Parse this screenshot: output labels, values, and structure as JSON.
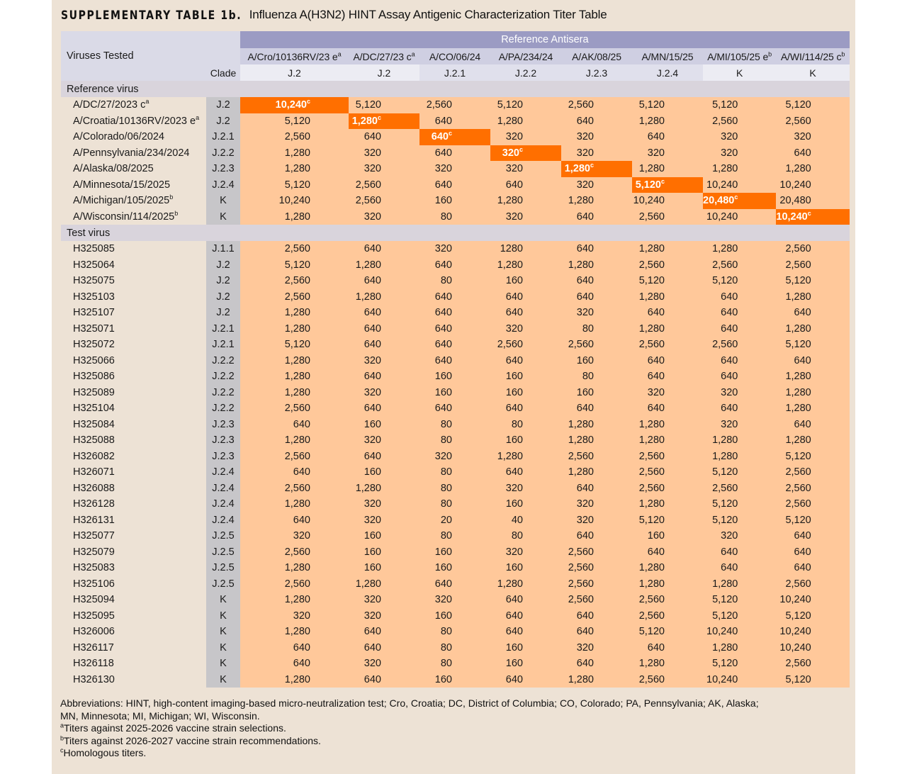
{
  "title": {
    "lead": "SUPPLEMENTARY TABLE 1b.",
    "text": "Influenza A(H3N2) HINT Assay Antigenic Characterization Titer Table"
  },
  "header": {
    "viruses_tested": "Viruses Tested",
    "clade": "Clade",
    "reference_antisera": "Reference Antisera",
    "antisera": [
      {
        "name": "A/Cro/10136RV/23 e",
        "sup": "a",
        "clade": "J.2"
      },
      {
        "name": "A/DC/27/23 c",
        "sup": "a",
        "clade": "J.2"
      },
      {
        "name": "A/CO/06/24",
        "sup": "",
        "clade": "J.2.1"
      },
      {
        "name": "A/PA/234/24",
        "sup": "",
        "clade": "J.2.2"
      },
      {
        "name": "A/AK/08/25",
        "sup": "",
        "clade": "J.2.3"
      },
      {
        "name": "A/MN/15/25",
        "sup": "",
        "clade": "J.2.4"
      },
      {
        "name": "A/MI/105/25 e",
        "sup": "b",
        "clade": "K"
      },
      {
        "name": "A/WI/114/25 c",
        "sup": "b",
        "clade": "K"
      }
    ]
  },
  "sections": [
    {
      "label": "Reference virus",
      "rows": [
        {
          "virus": "A/DC/27/2023 c",
          "sup": "a",
          "clade": "J.2",
          "titers": [
            "10,240",
            "5,120",
            "2,560",
            "5,120",
            "2,560",
            "5,120",
            "5,120",
            "5,120"
          ],
          "homologous": 0
        },
        {
          "virus": "A/Croatia/10136RV/2023 e",
          "sup": "a",
          "clade": "J.2",
          "titers": [
            "5,120",
            "1,280",
            "640",
            "1,280",
            "640",
            "1,280",
            "2,560",
            "2,560"
          ],
          "homologous": 1
        },
        {
          "virus": "A/Colorado/06/2024",
          "sup": "",
          "clade": "J.2.1",
          "titers": [
            "2,560",
            "640",
            "640",
            "320",
            "320",
            "640",
            "320",
            "320"
          ],
          "homologous": 2
        },
        {
          "virus": "A/Pennsylvania/234/2024",
          "sup": "",
          "clade": "J.2.2",
          "titers": [
            "1,280",
            "320",
            "640",
            "320",
            "320",
            "320",
            "320",
            "640"
          ],
          "homologous": 3
        },
        {
          "virus": "A/Alaska/08/2025",
          "sup": "",
          "clade": "J.2.3",
          "titers": [
            "1,280",
            "320",
            "320",
            "320",
            "1,280",
            "1,280",
            "1,280",
            "1,280"
          ],
          "homologous": 4
        },
        {
          "virus": "A/Minnesota/15/2025",
          "sup": "",
          "clade": "J.2.4",
          "titers": [
            "5,120",
            "2,560",
            "640",
            "640",
            "320",
            "5,120",
            "10,240",
            "10,240"
          ],
          "homologous": 5
        },
        {
          "virus": "A/Michigan/105/2025",
          "sup": "b",
          "clade": "K",
          "titers": [
            "10,240",
            "2,560",
            "160",
            "1,280",
            "1,280",
            "10,240",
            "20,480",
            "20,480"
          ],
          "homologous": 6
        },
        {
          "virus": "A/Wisconsin/114/2025",
          "sup": "b",
          "clade": "K",
          "titers": [
            "1,280",
            "320",
            "80",
            "320",
            "640",
            "2,560",
            "10,240",
            "10,240"
          ],
          "homologous": 7
        }
      ]
    },
    {
      "label": "Test virus",
      "rows": [
        {
          "virus": "H325085",
          "clade": "J.1.1",
          "titers": [
            "2,560",
            "640",
            "320",
            "1280",
            "640",
            "1,280",
            "1,280",
            "2,560"
          ]
        },
        {
          "virus": "H325064",
          "clade": "J.2",
          "titers": [
            "5,120",
            "1,280",
            "640",
            "1,280",
            "1,280",
            "2,560",
            "2,560",
            "2,560"
          ]
        },
        {
          "virus": "H325075",
          "clade": "J.2",
          "titers": [
            "2,560",
            "640",
            "80",
            "160",
            "640",
            "5,120",
            "5,120",
            "5,120"
          ]
        },
        {
          "virus": "H325103",
          "clade": "J.2",
          "titers": [
            "2,560",
            "1,280",
            "640",
            "640",
            "640",
            "1,280",
            "640",
            "1,280"
          ]
        },
        {
          "virus": "H325107",
          "clade": "J.2",
          "titers": [
            "1,280",
            "640",
            "640",
            "640",
            "320",
            "640",
            "640",
            "640"
          ]
        },
        {
          "virus": "H325071",
          "clade": "J.2.1",
          "titers": [
            "1,280",
            "640",
            "640",
            "320",
            "80",
            "1,280",
            "640",
            "1,280"
          ]
        },
        {
          "virus": "H325072",
          "clade": "J.2.1",
          "titers": [
            "5,120",
            "640",
            "640",
            "2,560",
            "2,560",
            "2,560",
            "2,560",
            "5,120"
          ]
        },
        {
          "virus": "H325066",
          "clade": "J.2.2",
          "titers": [
            "1,280",
            "320",
            "640",
            "640",
            "160",
            "640",
            "640",
            "640"
          ]
        },
        {
          "virus": "H325086",
          "clade": "J.2.2",
          "titers": [
            "1,280",
            "640",
            "160",
            "160",
            "80",
            "640",
            "640",
            "1,280"
          ]
        },
        {
          "virus": "H325089",
          "clade": "J.2.2",
          "titers": [
            "1,280",
            "320",
            "160",
            "160",
            "160",
            "320",
            "320",
            "1,280"
          ]
        },
        {
          "virus": "H325104",
          "clade": "J.2.2",
          "titers": [
            "2,560",
            "640",
            "640",
            "640",
            "640",
            "640",
            "640",
            "1,280"
          ]
        },
        {
          "virus": "H325084",
          "clade": "J.2.3",
          "titers": [
            "640",
            "160",
            "80",
            "80",
            "1,280",
            "1,280",
            "320",
            "640"
          ]
        },
        {
          "virus": "H325088",
          "clade": "J.2.3",
          "titers": [
            "1,280",
            "320",
            "80",
            "160",
            "1,280",
            "1,280",
            "1,280",
            "1,280"
          ]
        },
        {
          "virus": "H326082",
          "clade": "J.2.3",
          "titers": [
            "2,560",
            "640",
            "320",
            "1,280",
            "2,560",
            "2,560",
            "1,280",
            "5,120"
          ]
        },
        {
          "virus": "H326071",
          "clade": "J.2.4",
          "titers": [
            "640",
            "160",
            "80",
            "640",
            "1,280",
            "2,560",
            "5,120",
            "2,560"
          ]
        },
        {
          "virus": "H326088",
          "clade": "J.2.4",
          "titers": [
            "2,560",
            "1,280",
            "80",
            "320",
            "640",
            "2,560",
            "2,560",
            "2,560"
          ]
        },
        {
          "virus": "H326128",
          "clade": "J.2.4",
          "titers": [
            "1,280",
            "320",
            "80",
            "160",
            "320",
            "1,280",
            "5,120",
            "2,560"
          ]
        },
        {
          "virus": "H326131",
          "clade": "J.2.4",
          "titers": [
            "640",
            "320",
            "20",
            "40",
            "320",
            "5,120",
            "5,120",
            "5,120"
          ]
        },
        {
          "virus": "H325077",
          "clade": "J.2.5",
          "titers": [
            "320",
            "160",
            "80",
            "80",
            "640",
            "160",
            "320",
            "640"
          ]
        },
        {
          "virus": "H325079",
          "clade": "J.2.5",
          "titers": [
            "2,560",
            "160",
            "160",
            "320",
            "2,560",
            "640",
            "640",
            "640"
          ]
        },
        {
          "virus": "H325083",
          "clade": "J.2.5",
          "titers": [
            "1,280",
            "160",
            "160",
            "160",
            "2,560",
            "1,280",
            "640",
            "640"
          ]
        },
        {
          "virus": "H325106",
          "clade": "J.2.5",
          "titers": [
            "2,560",
            "1,280",
            "640",
            "1,280",
            "2,560",
            "1,280",
            "1,280",
            "2,560"
          ]
        },
        {
          "virus": "H325094",
          "clade": "K",
          "titers": [
            "1,280",
            "320",
            "320",
            "640",
            "2,560",
            "2,560",
            "5,120",
            "10,240"
          ]
        },
        {
          "virus": "H325095",
          "clade": "K",
          "titers": [
            "320",
            "320",
            "160",
            "640",
            "640",
            "2,560",
            "5,120",
            "5,120"
          ]
        },
        {
          "virus": "H326006",
          "clade": "K",
          "titers": [
            "1,280",
            "640",
            "80",
            "640",
            "640",
            "5,120",
            "10,240",
            "10,240"
          ]
        },
        {
          "virus": "H326117",
          "clade": "K",
          "titers": [
            "640",
            "640",
            "80",
            "160",
            "320",
            "640",
            "1,280",
            "10,240"
          ]
        },
        {
          "virus": "H326118",
          "clade": "K",
          "titers": [
            "640",
            "320",
            "80",
            "160",
            "640",
            "1,280",
            "5,120",
            "2,560"
          ]
        },
        {
          "virus": "H326130",
          "clade": "K",
          "titers": [
            "1,280",
            "640",
            "160",
            "640",
            "1,280",
            "2,560",
            "10,240",
            "5,120"
          ]
        }
      ]
    }
  ],
  "homologous_marker": "c",
  "footnotes": {
    "abbreviations": "Abbreviations: HINT, high-content imaging-based micro-neutralization test; Cro, Croatia; DC, District of Columbia; CO, Colorado; PA, Pennsylvania; AK, Alaska;",
    "abbreviations_cont": "MN, Minnesota; MI, Michigan; WI, Wisconsin.",
    "a": {
      "mark": "a",
      "text": "Titers against 2025-2026 vaccine strain selections."
    },
    "b": {
      "mark": "b",
      "text": "Titers against 2026-2027 vaccine strain recommendations."
    },
    "c": {
      "mark": "c",
      "text": "Homologous titers."
    }
  },
  "colors": {
    "panel_bg": "#ede2d5",
    "ref_antisera_header": "#9b9bc3",
    "titer_cell": "#ffc89a",
    "homologous_cell": "#ff6f00",
    "clade_column": "#c7c6c9"
  }
}
